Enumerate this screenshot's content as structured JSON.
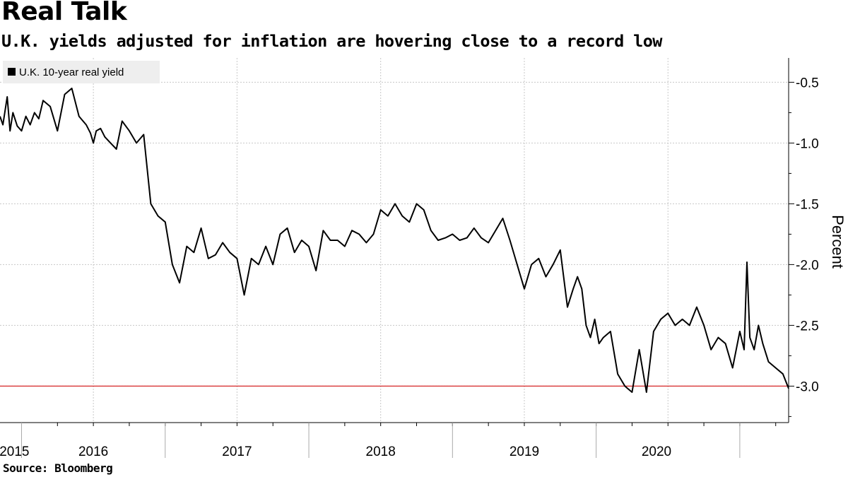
{
  "header": {
    "title": "Real Talk",
    "subtitle": "U.K. yields adjusted for inflation are hovering close to a record low"
  },
  "footer": {
    "source": "Source: Bloomberg"
  },
  "colors": {
    "line": "#000000",
    "reference": "#d62728",
    "grid": "#c8c8c8",
    "legend_bg": "#eeeeee"
  },
  "chart_data": {
    "type": "line",
    "title": "Real Talk",
    "subtitle": "U.K. yields adjusted for inflation are hovering close to a record low",
    "ylabel": "Percent",
    "xlabel": "",
    "ylim": [
      -3.3,
      -0.3
    ],
    "xlim": [
      2014.85,
      2020.34
    ],
    "y_ticks": [
      -0.5,
      -1.0,
      -1.5,
      -2.0,
      -2.5,
      -3.0
    ],
    "y_tick_labels": [
      "-0.5",
      "-1.0",
      "-1.5",
      "-2.0",
      "-2.5",
      "-3.0"
    ],
    "year_labels": [
      {
        "label": "2015",
        "x": 2014.95
      },
      {
        "label": "2016",
        "x": 2015.5
      },
      {
        "label": "2017",
        "x": 2016.5
      },
      {
        "label": "2018",
        "x": 2017.5
      },
      {
        "label": "2019",
        "x": 2018.5
      },
      {
        "label": "2020",
        "x": 2019.42
      }
    ],
    "year_boundaries": [
      2015.0,
      2016.0,
      2017.0,
      2018.0,
      2019.0,
      2020.0
    ],
    "legend": [
      "U.K. 10-year real yield"
    ],
    "legend_position": "top-left",
    "grid": true,
    "reference_line": {
      "y": -3.0,
      "color": "#d62728"
    },
    "series": [
      {
        "name": "U.K. 10-year real yield",
        "x": [
          2014.85,
          2014.87,
          2014.9,
          2014.92,
          2014.94,
          2014.97,
          2015.0,
          2015.03,
          2015.06,
          2015.09,
          2015.12,
          2015.15,
          2015.2,
          2015.25,
          2015.3,
          2015.35,
          2015.4,
          2015.45,
          2015.48,
          2015.5,
          2015.52,
          2015.55,
          2015.58,
          2015.62,
          2015.66,
          2015.7,
          2015.75,
          2015.8,
          2015.85,
          2015.9,
          2015.95,
          2016.0,
          2016.05,
          2016.1,
          2016.15,
          2016.2,
          2016.25,
          2016.3,
          2016.35,
          2016.4,
          2016.45,
          2016.5,
          2016.55,
          2016.6,
          2016.65,
          2016.7,
          2016.75,
          2016.8,
          2016.85,
          2016.9,
          2016.95,
          2017.0,
          2017.05,
          2017.1,
          2017.15,
          2017.2,
          2017.25,
          2017.3,
          2017.35,
          2017.4,
          2017.45,
          2017.5,
          2017.55,
          2017.6,
          2017.65,
          2017.7,
          2017.75,
          2017.8,
          2017.85,
          2017.9,
          2017.95,
          2018.0,
          2018.05,
          2018.1,
          2018.15,
          2018.2,
          2018.25,
          2018.3,
          2018.35,
          2018.4,
          2018.45,
          2018.5,
          2018.55,
          2018.6,
          2018.65,
          2018.7,
          2018.75,
          2018.8,
          2018.84,
          2018.87,
          2018.9,
          2018.93,
          2018.96,
          2018.99,
          2019.02,
          2019.05,
          2019.1,
          2019.15,
          2019.2,
          2019.25,
          2019.3,
          2019.35,
          2019.4,
          2019.45,
          2019.5,
          2019.55,
          2019.6,
          2019.65,
          2019.7,
          2019.75,
          2019.8,
          2019.85,
          2019.9,
          2019.95,
          2020.0,
          2020.03,
          2020.05,
          2020.07,
          2020.1,
          2020.13,
          2020.16,
          2020.2,
          2020.25,
          2020.3,
          2020.34
        ],
        "values": [
          -0.78,
          -0.85,
          -0.62,
          -0.9,
          -0.75,
          -0.86,
          -0.9,
          -0.78,
          -0.85,
          -0.75,
          -0.8,
          -0.65,
          -0.7,
          -0.9,
          -0.6,
          -0.55,
          -0.78,
          -0.85,
          -0.92,
          -1.0,
          -0.9,
          -0.88,
          -0.95,
          -1.0,
          -1.05,
          -0.82,
          -0.9,
          -1.0,
          -0.93,
          -1.5,
          -1.6,
          -1.65,
          -2.0,
          -2.15,
          -1.85,
          -1.9,
          -1.7,
          -1.95,
          -1.92,
          -1.82,
          -1.9,
          -1.95,
          -2.25,
          -1.95,
          -2.0,
          -1.85,
          -2.0,
          -1.75,
          -1.7,
          -1.9,
          -1.8,
          -1.85,
          -2.05,
          -1.72,
          -1.8,
          -1.8,
          -1.85,
          -1.72,
          -1.75,
          -1.82,
          -1.75,
          -1.55,
          -1.6,
          -1.5,
          -1.6,
          -1.65,
          -1.5,
          -1.55,
          -1.72,
          -1.8,
          -1.78,
          -1.75,
          -1.8,
          -1.78,
          -1.7,
          -1.78,
          -1.82,
          -1.72,
          -1.62,
          -1.8,
          -2.0,
          -2.2,
          -2.0,
          -1.95,
          -2.1,
          -2.0,
          -1.88,
          -2.35,
          -2.2,
          -2.1,
          -2.2,
          -2.5,
          -2.6,
          -2.45,
          -2.65,
          -2.6,
          -2.55,
          -2.9,
          -3.0,
          -3.05,
          -2.7,
          -3.05,
          -2.55,
          -2.45,
          -2.4,
          -2.5,
          -2.45,
          -2.5,
          -2.35,
          -2.5,
          -2.7,
          -2.6,
          -2.65,
          -2.85,
          -2.55,
          -2.7,
          -1.98,
          -2.6,
          -2.7,
          -2.5,
          -2.65,
          -2.8,
          -2.85,
          -2.9,
          -3.02
        ]
      }
    ]
  }
}
